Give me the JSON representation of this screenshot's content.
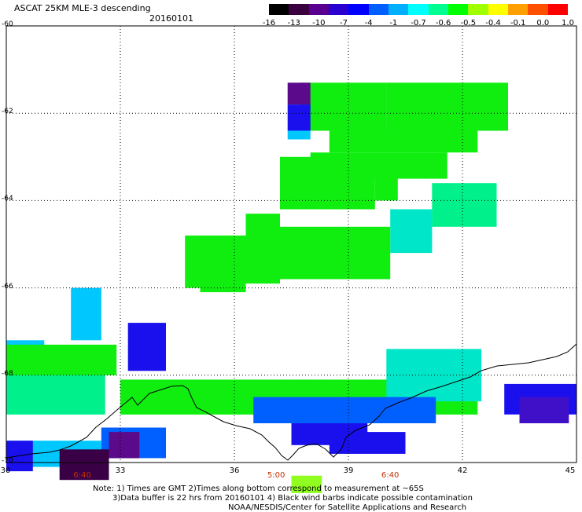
{
  "header": {
    "title": "ASCAT 25KM MLE-3 descending",
    "date": "20160101"
  },
  "colorbar": {
    "ticks": [
      "-16",
      "-13",
      "-10",
      "-7",
      "-4",
      "-1",
      "-0.7",
      "-0.6",
      "-0.5",
      "-0.4",
      "-0.1",
      "0.0",
      "1.0"
    ],
    "colors": [
      "#000000",
      "#3a0040",
      "#5a0090",
      "#2a00d0",
      "#0000ff",
      "#0060ff",
      "#00b0ff",
      "#00ffff",
      "#00ff90",
      "#00ff00",
      "#a0ff00",
      "#ffff00",
      "#ffa000",
      "#ff5000",
      "#ff0000"
    ]
  },
  "axes": {
    "lat_labels": [
      "-60",
      "-62",
      "-64",
      "-66",
      "-68",
      "-70"
    ],
    "lon_labels": [
      "30",
      "33",
      "36",
      "39",
      "42",
      "45"
    ],
    "time_labels": [
      "6:40",
      "5:00",
      "6:40"
    ]
  },
  "notes": {
    "line1": "Note: 1) Times are GMT 2)Times along bottom correspond to measurement at ~65S",
    "line2": "3)Data buffer is 22 hrs from 20160101 4) Black wind barbs indicate possible contamination",
    "line3": "NOAA/NESDIS/Center for Satellite Applications and Research"
  },
  "chart_data": {
    "type": "heatmap",
    "title": "ASCAT 25KM MLE-3 descending",
    "subtitle": "20160101",
    "xlabel": "",
    "ylabel": "",
    "xlim": [
      30,
      45
    ],
    "ylim": [
      -70,
      -60
    ],
    "grid": true,
    "legend": "colorbar top-right",
    "x_ticks": [
      30,
      33,
      36,
      39,
      42,
      45
    ],
    "y_ticks": [
      -60,
      -62,
      -64,
      -66,
      -68,
      -70
    ],
    "colorbar_ticks": [
      "-16",
      "-13",
      "-10",
      "-7",
      "-4",
      "-1",
      "-0.7",
      "-0.6",
      "-0.5",
      "-0.4",
      "-0.1",
      "0.0",
      "1.0"
    ],
    "regions": [
      {
        "lon": [
          37.7,
          40.0
        ],
        "lat": [
          -62.4,
          -61.3
        ],
        "level": "-0.5"
      },
      {
        "lon": [
          40.0,
          43.2
        ],
        "lat": [
          -62.4,
          -61.3
        ],
        "level": "-0.5"
      },
      {
        "lon": [
          37.4,
          38.0
        ],
        "lat": [
          -61.8,
          -61.3
        ],
        "level": "-13"
      },
      {
        "lon": [
          37.4,
          38.0
        ],
        "lat": [
          -62.4,
          -61.8
        ],
        "level": "-7"
      },
      {
        "lon": [
          37.4,
          38.0
        ],
        "lat": [
          -62.6,
          -62.4
        ],
        "level": "-1"
      },
      {
        "lon": [
          38.5,
          42.4
        ],
        "lat": [
          -62.9,
          -62.4
        ],
        "level": "-0.5"
      },
      {
        "lon": [
          38.0,
          41.6
        ],
        "lat": [
          -63.5,
          -62.9
        ],
        "level": "-0.5"
      },
      {
        "lon": [
          37.2,
          39.7
        ],
        "lat": [
          -64.2,
          -63.0
        ],
        "level": "-0.5"
      },
      {
        "lon": [
          39.7,
          40.3
        ],
        "lat": [
          -64.0,
          -63.0
        ],
        "level": "-0.5"
      },
      {
        "lon": [
          41.2,
          42.9
        ],
        "lat": [
          -64.6,
          -63.6
        ],
        "level": "-0.6"
      },
      {
        "lon": [
          40.1,
          41.2
        ],
        "lat": [
          -65.2,
          -64.2
        ],
        "level": "-0.7"
      },
      {
        "lon": [
          37.2,
          40.1
        ],
        "lat": [
          -65.8,
          -64.6
        ],
        "level": "-0.5"
      },
      {
        "lon": [
          36.3,
          37.2
        ],
        "lat": [
          -65.9,
          -64.3
        ],
        "level": "-0.5"
      },
      {
        "lon": [
          34.7,
          36.3
        ],
        "lat": [
          -66.0,
          -64.8
        ],
        "level": "-0.5"
      },
      {
        "lon": [
          35.1,
          36.3
        ],
        "lat": [
          -66.1,
          -65.9
        ],
        "level": "-0.5"
      },
      {
        "lon": [
          31.7,
          32.5
        ],
        "lat": [
          -67.2,
          -66.0
        ],
        "level": "-1"
      },
      {
        "lon": [
          30.0,
          31.0
        ],
        "lat": [
          -67.6,
          -67.2
        ],
        "level": "-1"
      },
      {
        "lon": [
          30.0,
          32.6
        ],
        "lat": [
          -68.9,
          -67.6
        ],
        "level": "-0.6"
      },
      {
        "lon": [
          30.0,
          32.9
        ],
        "lat": [
          -68.0,
          -67.3
        ],
        "level": "-0.5"
      },
      {
        "lon": [
          33.0,
          42.4
        ],
        "lat": [
          -68.9,
          -68.1
        ],
        "level": "-0.5"
      },
      {
        "lon": [
          40.0,
          42.5
        ],
        "lat": [
          -68.6,
          -67.4
        ],
        "level": "-0.7"
      },
      {
        "lon": [
          36.5,
          41.3
        ],
        "lat": [
          -69.1,
          -68.5
        ],
        "level": "-4"
      },
      {
        "lon": [
          37.5,
          39.5
        ],
        "lat": [
          -69.6,
          -69.1
        ],
        "level": "-7"
      },
      {
        "lon": [
          38.5,
          40.5
        ],
        "lat": [
          -69.8,
          -69.3
        ],
        "level": "-7"
      },
      {
        "lon": [
          33.2,
          34.2
        ],
        "lat": [
          -67.9,
          -66.8
        ],
        "level": "-7"
      },
      {
        "lon": [
          30.0,
          32.5
        ],
        "lat": [
          -70.1,
          -69.5
        ],
        "level": "-1"
      },
      {
        "lon": [
          32.5,
          34.2
        ],
        "lat": [
          -69.9,
          -69.2
        ],
        "level": "-4"
      },
      {
        "lon": [
          31.4,
          32.7
        ],
        "lat": [
          -70.4,
          -69.7
        ],
        "level": "-16"
      },
      {
        "lon": [
          32.7,
          33.5
        ],
        "lat": [
          -69.9,
          -69.3
        ],
        "level": "-13"
      },
      {
        "lon": [
          30.0,
          30.7
        ],
        "lat": [
          -70.2,
          -69.5
        ],
        "level": "-7"
      },
      {
        "lon": [
          37.5,
          38.3
        ],
        "lat": [
          -70.7,
          -70.3
        ],
        "level": "-0.4"
      },
      {
        "lon": [
          43.1,
          45.0
        ],
        "lat": [
          -68.9,
          -68.2
        ],
        "level": "-7"
      },
      {
        "lon": [
          43.5,
          44.8
        ],
        "lat": [
          -69.1,
          -68.5
        ],
        "level": "-10"
      }
    ]
  }
}
